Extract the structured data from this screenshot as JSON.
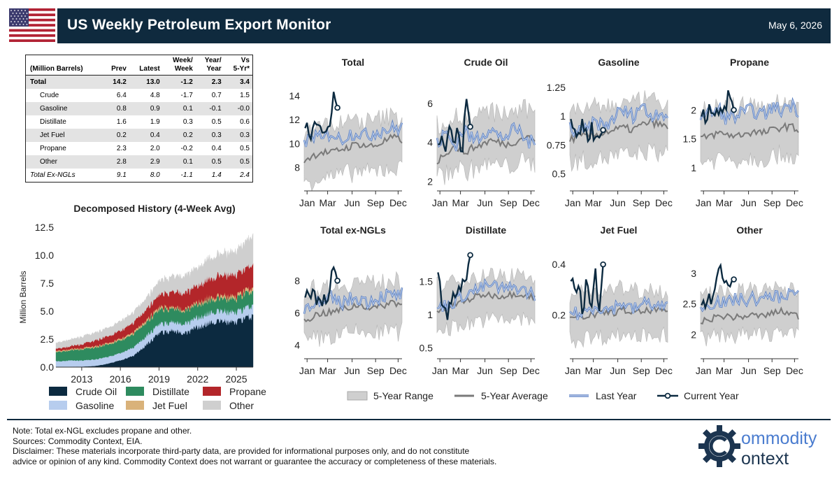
{
  "header": {
    "title": "US Weekly Petroleum Export Monitor",
    "date": "May 6, 2026"
  },
  "table": {
    "headers": [
      {
        "top": "",
        "bottom": "(Million Barrels)"
      },
      {
        "top": "",
        "bottom": "Prev"
      },
      {
        "top": "",
        "bottom": "Latest"
      },
      {
        "top": "Week/",
        "bottom": "Week"
      },
      {
        "top": "Year/",
        "bottom": "Year"
      },
      {
        "top": "Vs",
        "bottom": "5-Yr*"
      }
    ],
    "rows": [
      {
        "label": "Total",
        "prev": "14.2",
        "latest": "13.0",
        "ww": "-1.2",
        "yy": "2.3",
        "vs5": "3.4"
      },
      {
        "label": "Crude",
        "prev": "6.4",
        "latest": "4.8",
        "ww": "-1.7",
        "yy": "0.7",
        "vs5": "1.5"
      },
      {
        "label": "Gasoline",
        "prev": "0.8",
        "latest": "0.9",
        "ww": "0.1",
        "yy": "-0.1",
        "vs5": "-0.0"
      },
      {
        "label": "Distillate",
        "prev": "1.6",
        "latest": "1.9",
        "ww": "0.3",
        "yy": "0.5",
        "vs5": "0.6"
      },
      {
        "label": "Jet Fuel",
        "prev": "0.2",
        "latest": "0.4",
        "ww": "0.2",
        "yy": "0.3",
        "vs5": "0.3"
      },
      {
        "label": "Propane",
        "prev": "2.3",
        "latest": "2.0",
        "ww": "-0.2",
        "yy": "0.4",
        "vs5": "0.5"
      },
      {
        "label": "Other",
        "prev": "2.8",
        "latest": "2.9",
        "ww": "0.1",
        "yy": "0.5",
        "vs5": "0.5"
      },
      {
        "label": "Total Ex-NGLs",
        "prev": "9.1",
        "latest": "8.0",
        "ww": "-1.1",
        "yy": "1.4",
        "vs5": "2.4"
      }
    ]
  },
  "main_chart": {
    "title": "Decomposed History (4-Week Avg)",
    "ylabel": "Million Barrels",
    "yticks": [
      "0.0",
      "2.5",
      "5.0",
      "7.5",
      "10.0",
      "12.5"
    ],
    "xticks": [
      "2013",
      "2016",
      "2019",
      "2022",
      "2025"
    ],
    "legend": [
      "Crude Oil",
      "Distillate",
      "Propane",
      "Gasoline",
      "Jet Fuel",
      "Other"
    ]
  },
  "bottom_legend": {
    "range": "5-Year Range",
    "average": "5-Year Average",
    "last_year": "Last Year",
    "current": "Current Year"
  },
  "colors": {
    "header_bg": "#0f2a3e",
    "crude": "#0c2a40",
    "gasoline": "#b7cdee",
    "distillate": "#2e8b5f",
    "jet_fuel": "#d9b27a",
    "propane": "#b3262a",
    "other": "#cfcfcf",
    "range": "#cfcfcf",
    "average": "#7a7a7a",
    "last_year": "#7e9fd6",
    "current": "#0c2a40"
  },
  "chart_data": [
    {
      "type": "area",
      "title": "Decomposed History (4-Week Avg)",
      "ylabel": "Million Barrels",
      "ylim": [
        0,
        12.5
      ],
      "x": [
        2011,
        2012,
        2013,
        2014,
        2015,
        2016,
        2017,
        2018,
        2019,
        2020,
        2021,
        2022,
        2023,
        2024,
        2025,
        2026
      ],
      "series": [
        {
          "name": "Crude Oil",
          "values": [
            0.03,
            0.03,
            0.05,
            0.1,
            0.3,
            0.6,
            1.0,
            2.0,
            3.0,
            3.3,
            3.0,
            3.6,
            4.0,
            4.1,
            4.0,
            4.5
          ]
        },
        {
          "name": "Gasoline",
          "values": [
            0.5,
            0.55,
            0.55,
            0.6,
            0.6,
            0.65,
            0.75,
            0.8,
            0.8,
            0.75,
            0.85,
            0.85,
            0.9,
            0.9,
            0.85,
            0.9
          ]
        },
        {
          "name": "Distillate",
          "values": [
            0.8,
            0.9,
            1.0,
            1.05,
            1.1,
            1.15,
            1.2,
            1.25,
            1.3,
            1.2,
            1.15,
            1.15,
            1.15,
            1.15,
            1.2,
            1.3
          ]
        },
        {
          "name": "Jet Fuel",
          "values": [
            0.1,
            0.1,
            0.1,
            0.12,
            0.12,
            0.15,
            0.18,
            0.2,
            0.22,
            0.15,
            0.15,
            0.2,
            0.22,
            0.25,
            0.25,
            0.3
          ]
        },
        {
          "name": "Propane",
          "values": [
            0.2,
            0.25,
            0.35,
            0.5,
            0.6,
            0.7,
            0.85,
            0.95,
            1.1,
            1.35,
            1.45,
            1.5,
            1.7,
            1.85,
            1.9,
            2.0
          ]
        },
        {
          "name": "Other",
          "values": [
            0.5,
            0.6,
            0.65,
            0.7,
            0.75,
            0.85,
            0.9,
            1.0,
            1.2,
            1.35,
            1.5,
            1.6,
            1.8,
            1.9,
            2.0,
            2.5
          ]
        }
      ],
      "xticks": [
        "2013",
        "2016",
        "2019",
        "2022",
        "2025"
      ],
      "yticks": [
        "0.0",
        "2.5",
        "5.0",
        "7.5",
        "10.0",
        "12.5"
      ],
      "legend": "bottom"
    },
    {
      "type": "line",
      "title": "Total",
      "ylim": [
        6.5,
        15
      ],
      "yticks": [
        8,
        10,
        12,
        14
      ],
      "xticks": [
        "Jan",
        "Mar",
        "Jun",
        "Sep",
        "Dec"
      ],
      "series": [
        {
          "name": "5-Year Range",
          "low": 7.0,
          "high": 11.8
        },
        {
          "name": "5-Year Average",
          "values": [
            8.6,
            9.0,
            9.3,
            9.2,
            9.5,
            9.7,
            10.0,
            9.8,
            9.8,
            10.2,
            10.5,
            10.3
          ]
        },
        {
          "name": "Last Year",
          "values": [
            9.8,
            10.8,
            10.2,
            11.0,
            10.3,
            10.8,
            11.0,
            10.6,
            11.0,
            11.2,
            11.2,
            11.4
          ]
        },
        {
          "name": "Current Year",
          "values": [
            11.5,
            10.8,
            11.2,
            11.0,
            11.3,
            11.5,
            11.8,
            14.2,
            13.0
          ]
        }
      ]
    },
    {
      "type": "line",
      "title": "Crude Oil",
      "ylim": [
        1.8,
        7.0
      ],
      "yticks": [
        2,
        4,
        6
      ],
      "xticks": [
        "Jan",
        "Mar",
        "Jun",
        "Sep",
        "Dec"
      ],
      "series": [
        {
          "name": "5-Year Range",
          "low": 2.8,
          "high": 5.8
        },
        {
          "name": "5-Year Average",
          "values": [
            3.0,
            3.5,
            3.8,
            3.5,
            3.7,
            3.9,
            4.1,
            4.0,
            3.9,
            4.1,
            4.3,
            4.1
          ]
        },
        {
          "name": "Last Year",
          "values": [
            3.9,
            4.5,
            3.8,
            4.7,
            4.1,
            4.4,
            4.8,
            4.2,
            4.4,
            4.7,
            4.1,
            3.9
          ]
        },
        {
          "name": "Current Year",
          "values": [
            4.3,
            4.4,
            3.7,
            5.0,
            3.6,
            5.0,
            3.4,
            6.4,
            4.8
          ]
        }
      ]
    },
    {
      "type": "line",
      "title": "Gasoline",
      "ylim": [
        0.4,
        1.28
      ],
      "yticks": [
        0.5,
        0.75,
        1.0,
        1.25
      ],
      "xticks": [
        "Jan",
        "Mar",
        "Jun",
        "Sep",
        "Dec"
      ],
      "series": [
        {
          "name": "5-Year Range",
          "low": 0.6,
          "high": 1.1
        },
        {
          "name": "5-Year Average",
          "values": [
            0.8,
            0.82,
            0.83,
            0.84,
            0.86,
            0.88,
            0.9,
            0.88,
            0.92,
            0.95,
            0.93,
            0.9
          ]
        },
        {
          "name": "Last Year",
          "values": [
            0.9,
            0.85,
            0.88,
            0.95,
            0.9,
            1.0,
            1.05,
            1.0,
            1.1,
            1.0,
            1.05,
            1.0
          ]
        },
        {
          "name": "Current Year",
          "values": [
            0.9,
            0.88,
            0.85,
            0.95,
            0.82,
            0.9,
            0.82,
            0.8,
            0.88
          ]
        }
      ]
    },
    {
      "type": "line",
      "title": "Propane",
      "ylim": [
        0.7,
        2.45
      ],
      "yticks": [
        1.0,
        1.5,
        2.0
      ],
      "xticks": [
        "Jan",
        "Mar",
        "Jun",
        "Sep",
        "Dec"
      ],
      "series": [
        {
          "name": "5-Year Range",
          "low": 1.1,
          "high": 2.1
        },
        {
          "name": "5-Year Average",
          "values": [
            1.5,
            1.55,
            1.6,
            1.58,
            1.55,
            1.6,
            1.62,
            1.6,
            1.65,
            1.7,
            1.72,
            1.65
          ]
        },
        {
          "name": "Last Year",
          "values": [
            1.9,
            1.95,
            2.0,
            1.85,
            1.9,
            1.95,
            2.0,
            1.9,
            2.05,
            2.0,
            2.1,
            2.0
          ]
        },
        {
          "name": "Current Year",
          "values": [
            2.0,
            1.9,
            2.1,
            1.8,
            2.0,
            1.9,
            2.1,
            2.3,
            2.0
          ]
        }
      ]
    },
    {
      "type": "line",
      "title": "Total ex-NGLs",
      "ylim": [
        3.5,
        9.8
      ],
      "yticks": [
        4,
        6,
        8
      ],
      "xticks": [
        "Jan",
        "Mar",
        "Jun",
        "Sep",
        "Dec"
      ],
      "series": [
        {
          "name": "5-Year Range",
          "low": 4.3,
          "high": 7.8
        },
        {
          "name": "5-Year Average",
          "values": [
            5.5,
            5.8,
            6.0,
            6.0,
            6.2,
            6.3,
            6.5,
            6.4,
            6.3,
            6.5,
            6.7,
            6.5
          ]
        },
        {
          "name": "Last Year",
          "values": [
            6.2,
            6.8,
            6.4,
            6.9,
            6.6,
            6.8,
            7.0,
            6.7,
            6.9,
            7.1,
            7.0,
            7.2
          ]
        },
        {
          "name": "Current Year",
          "values": [
            7.2,
            6.6,
            7.0,
            6.6,
            7.0,
            6.8,
            7.3,
            9.1,
            8.0
          ]
        }
      ]
    },
    {
      "type": "line",
      "title": "Distillate",
      "ylim": [
        0.42,
        1.95
      ],
      "yticks": [
        0.5,
        1.0,
        1.5
      ],
      "xticks": [
        "Jan",
        "Mar",
        "Jun",
        "Sep",
        "Dec"
      ],
      "series": [
        {
          "name": "5-Year Range",
          "low": 0.8,
          "high": 1.55
        },
        {
          "name": "5-Year Average",
          "values": [
            1.05,
            1.1,
            1.15,
            1.2,
            1.25,
            1.3,
            1.3,
            1.28,
            1.3,
            1.32,
            1.3,
            1.25
          ]
        },
        {
          "name": "Last Year",
          "values": [
            1.1,
            1.15,
            1.2,
            1.3,
            1.35,
            1.4,
            1.45,
            1.4,
            1.38,
            1.42,
            1.35,
            1.3
          ]
        },
        {
          "name": "Current Year",
          "values": [
            1.6,
            1.2,
            1.0,
            1.1,
            1.3,
            1.4,
            1.5,
            1.6,
            1.9
          ]
        }
      ]
    },
    {
      "type": "line",
      "title": "Jet Fuel",
      "ylim": [
        0.05,
        0.45
      ],
      "yticks": [
        0.2,
        0.4
      ],
      "xticks": [
        "Jan",
        "Mar",
        "Jun",
        "Sep",
        "Dec"
      ],
      "series": [
        {
          "name": "5-Year Range",
          "low": 0.1,
          "high": 0.3
        },
        {
          "name": "5-Year Average",
          "values": [
            0.18,
            0.19,
            0.2,
            0.2,
            0.21,
            0.21,
            0.22,
            0.21,
            0.21,
            0.22,
            0.22,
            0.21
          ]
        },
        {
          "name": "Last Year",
          "values": [
            0.22,
            0.2,
            0.22,
            0.24,
            0.22,
            0.23,
            0.25,
            0.22,
            0.24,
            0.25,
            0.23,
            0.24
          ]
        },
        {
          "name": "Current Year",
          "values": [
            0.35,
            0.28,
            0.3,
            0.22,
            0.35,
            0.2,
            0.42,
            0.2,
            0.4
          ]
        }
      ]
    },
    {
      "type": "line",
      "title": "Other",
      "ylim": [
        1.7,
        3.35
      ],
      "yticks": [
        2.0,
        2.5,
        3.0
      ],
      "xticks": [
        "Jan",
        "Mar",
        "Jun",
        "Sep",
        "Dec"
      ],
      "series": [
        {
          "name": "5-Year Range",
          "low": 2.0,
          "high": 2.8
        },
        {
          "name": "5-Year Average",
          "values": [
            2.2,
            2.25,
            2.3,
            2.3,
            2.28,
            2.3,
            2.32,
            2.3,
            2.35,
            2.38,
            2.35,
            2.3
          ]
        },
        {
          "name": "Last Year",
          "values": [
            2.45,
            2.5,
            2.55,
            2.5,
            2.6,
            2.55,
            2.6,
            2.55,
            2.65,
            2.6,
            2.7,
            2.65
          ]
        },
        {
          "name": "Current Year",
          "values": [
            2.4,
            2.5,
            2.6,
            2.75,
            3.2,
            2.8,
            2.85,
            2.9
          ]
        }
      ]
    }
  ],
  "footer": {
    "note": "Note: Total ex-NGL excludes propane and other.",
    "sources": "Sources: Commodity Context, EIA.",
    "disclaimer1": "Disclaimer: These materials incorporate third-party data, are provided for informational purposes only, and do not constitute",
    "disclaimer2": "advice or opinion of any kind. Commodity Context does not warrant or guarantee the accuracy or completeness of these materials."
  },
  "logo": {
    "line1": "ommodity",
    "line2": "ontext",
    "icon": "gear-icon"
  }
}
